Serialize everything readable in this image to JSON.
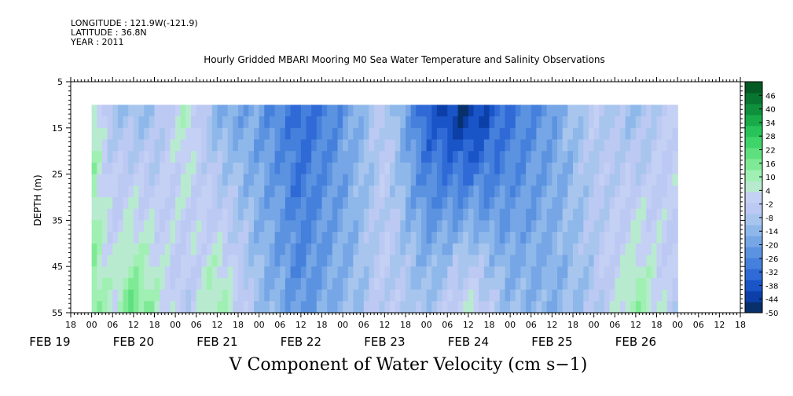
{
  "header": {
    "longitude": "LONGITUDE : 121.9W(-121.9)",
    "latitude": "LATITUDE : 36.8N",
    "year": "YEAR : 2011"
  },
  "chart_data": {
    "type": "heatmap",
    "title": "Hourly Gridded MBARI Mooring M0 Sea Water Temperature and Salinity Observations",
    "bottom_title": "V Component of Water Velocity (cm s−1)",
    "ylabel": "DEPTH (m)",
    "y_ticks": [
      5,
      15,
      25,
      35,
      45,
      55
    ],
    "ylim": [
      5,
      55
    ],
    "y_inverted": true,
    "x_hour_ticks": [
      "18",
      "00",
      "06",
      "12",
      "18",
      "00",
      "06",
      "12",
      "18",
      "00",
      "06",
      "12",
      "18",
      "00",
      "06",
      "12",
      "18",
      "00",
      "06",
      "12",
      "18",
      "00",
      "06",
      "12",
      "18",
      "00",
      "06",
      "12",
      "18",
      "00",
      "06",
      "12",
      "18"
    ],
    "x_date_labels": [
      {
        "label": "FEB 19",
        "hours_from_start": -12
      },
      {
        "label": "FEB 20",
        "hours_from_start": 12
      },
      {
        "label": "FEB 21",
        "hours_from_start": 36
      },
      {
        "label": "FEB 22",
        "hours_from_start": 60
      },
      {
        "label": "FEB 23",
        "hours_from_start": 84
      },
      {
        "label": "FEB 24",
        "hours_from_start": 108
      },
      {
        "label": "FEB 25",
        "hours_from_start": 132
      },
      {
        "label": "FEB 26",
        "hours_from_start": 156
      }
    ],
    "time_range": [
      "FEB 18 18:00",
      "FEB 26 18:00"
    ],
    "data_time_start": "FEB 19 00:00",
    "data_depth_range": [
      10,
      55
    ],
    "colorbar": {
      "labels": [
        46,
        40,
        34,
        28,
        22,
        16,
        10,
        4,
        -2,
        -8,
        -14,
        -20,
        -26,
        -32,
        -38,
        -44,
        -50
      ],
      "range": [
        -50,
        52
      ],
      "colors": [
        "#08306b",
        "#0d3fa8",
        "#1a55c8",
        "#2f6ad6",
        "#4580dc",
        "#5c93e0",
        "#76a6e6",
        "#8fb8ea",
        "#a8c5ee",
        "#bcc9f3",
        "#c4d0f4",
        "#b8ead0",
        "#9ff0b2",
        "#7fea96",
        "#5fe07e",
        "#3fd46a",
        "#28c45a",
        "#19ab4a",
        "#0f903c",
        "#087530",
        "#045a24"
      ]
    },
    "velocity_samples": [
      {
        "day_hours": 0,
        "surface": 10,
        "deep": 14
      },
      {
        "day_hours": 6,
        "surface": -8,
        "deep": 6
      },
      {
        "day_hours": 12,
        "surface": -12,
        "deep": 20
      },
      {
        "day_hours": 18,
        "surface": -10,
        "deep": 10
      },
      {
        "day_hours": 27,
        "surface": 8,
        "deep": -6
      },
      {
        "day_hours": 36,
        "surface": -16,
        "deep": 14
      },
      {
        "day_hours": 48,
        "surface": -20,
        "deep": -10
      },
      {
        "day_hours": 60,
        "surface": -34,
        "deep": -22
      },
      {
        "day_hours": 72,
        "surface": -22,
        "deep": -14
      },
      {
        "day_hours": 84,
        "surface": -4,
        "deep": -2
      },
      {
        "day_hours": 96,
        "surface": -36,
        "deep": -8
      },
      {
        "day_hours": 108,
        "surface": -46,
        "deep": 8
      },
      {
        "day_hours": 120,
        "surface": -30,
        "deep": -12
      },
      {
        "day_hours": 132,
        "surface": -20,
        "deep": -14
      },
      {
        "day_hours": 144,
        "surface": -4,
        "deep": -8
      },
      {
        "day_hours": 156,
        "surface": -12,
        "deep": 14
      },
      {
        "day_hours": 168,
        "surface": 2,
        "deep": -4
      }
    ]
  }
}
